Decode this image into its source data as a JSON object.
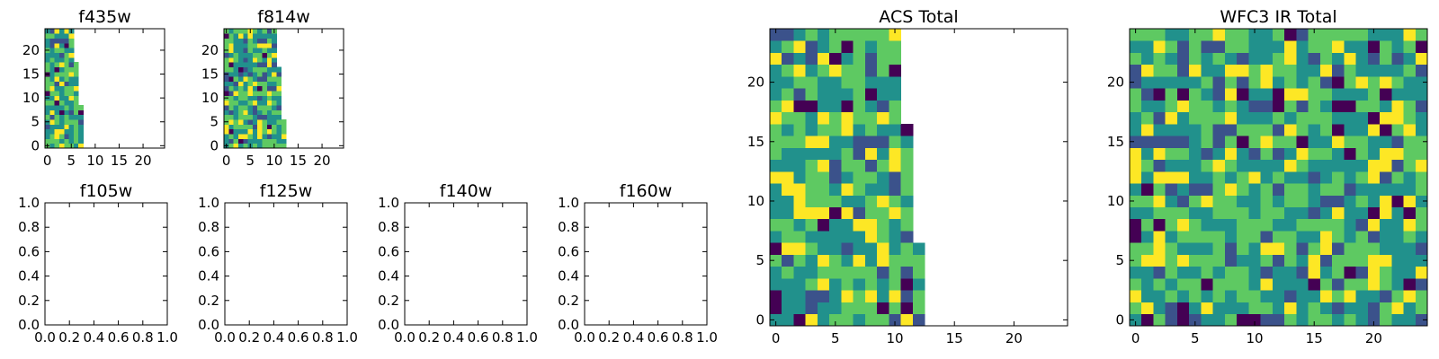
{
  "colors": {
    "colormap": [
      "#440154",
      "#3b528b",
      "#21918c",
      "#5ec962",
      "#fde725"
    ]
  },
  "chart_data": [
    {
      "type": "heatmap",
      "title": "f435w",
      "xlim": [
        -0.5,
        24.5
      ],
      "ylim": [
        -0.5,
        24.5
      ],
      "xticks": [
        "0",
        "5",
        "10",
        "15",
        "20"
      ],
      "yticks": [
        "0",
        "5",
        "10",
        "15",
        "20"
      ],
      "data_columns_by_row": [
        8,
        8,
        8,
        8,
        8,
        8,
        8,
        8,
        8,
        7,
        7,
        7,
        7,
        7,
        7,
        7,
        7,
        7,
        6,
        6,
        6,
        6,
        6,
        6,
        6
      ]
    },
    {
      "type": "heatmap",
      "title": "f814w",
      "xlim": [
        -0.5,
        24.5
      ],
      "ylim": [
        -0.5,
        24.5
      ],
      "xticks": [
        "0",
        "5",
        "10",
        "15",
        "20"
      ],
      "yticks": [
        "0",
        "5",
        "10",
        "15",
        "20"
      ],
      "data_columns_by_row": [
        13,
        13,
        13,
        13,
        13,
        13,
        12,
        12,
        12,
        12,
        12,
        12,
        12,
        12,
        12,
        12,
        12,
        11,
        11,
        11,
        11,
        11,
        11,
        11,
        11
      ]
    },
    {
      "type": "heatmap",
      "title": "f105w",
      "empty": true,
      "xlim": [
        0,
        1
      ],
      "ylim": [
        0,
        1
      ],
      "xticks": [
        "0.0",
        "0.2",
        "0.4",
        "0.6",
        "0.8",
        "1.0"
      ],
      "yticks": [
        "0.0",
        "0.2",
        "0.4",
        "0.6",
        "0.8",
        "1.0"
      ]
    },
    {
      "type": "heatmap",
      "title": "f125w",
      "empty": true,
      "xlim": [
        0,
        1
      ],
      "ylim": [
        0,
        1
      ],
      "xticks": [
        "0.0",
        "0.2",
        "0.4",
        "0.6",
        "0.8",
        "1.0"
      ],
      "yticks": [
        "0.0",
        "0.2",
        "0.4",
        "0.6",
        "0.8",
        "1.0"
      ]
    },
    {
      "type": "heatmap",
      "title": "f140w",
      "empty": true,
      "xlim": [
        0,
        1
      ],
      "ylim": [
        0,
        1
      ],
      "xticks": [
        "0.0",
        "0.2",
        "0.4",
        "0.6",
        "0.8",
        "1.0"
      ],
      "yticks": [
        "0.0",
        "0.2",
        "0.4",
        "0.6",
        "0.8",
        "1.0"
      ]
    },
    {
      "type": "heatmap",
      "title": "f160w",
      "empty": true,
      "xlim": [
        0,
        1
      ],
      "ylim": [
        0,
        1
      ],
      "xticks": [
        "0.0",
        "0.2",
        "0.4",
        "0.6",
        "0.8",
        "1.0"
      ],
      "yticks": [
        "0.0",
        "0.2",
        "0.4",
        "0.6",
        "0.8",
        "1.0"
      ]
    },
    {
      "type": "heatmap",
      "title": "ACS Total",
      "xlim": [
        -0.5,
        24.5
      ],
      "ylim": [
        -0.5,
        24.5
      ],
      "xticks": [
        "0",
        "5",
        "10",
        "15",
        "20"
      ],
      "yticks": [
        "0",
        "5",
        "10",
        "15",
        "20"
      ],
      "data_columns_by_row": [
        13,
        13,
        13,
        13,
        13,
        13,
        13,
        12,
        12,
        12,
        12,
        12,
        12,
        12,
        12,
        12,
        12,
        11,
        11,
        11,
        11,
        11,
        11,
        11,
        11
      ]
    },
    {
      "type": "heatmap",
      "title": "WFC3 IR Total",
      "xlim": [
        -0.5,
        24.5
      ],
      "ylim": [
        -0.5,
        24.5
      ],
      "xticks": [
        "0",
        "5",
        "10",
        "15",
        "20"
      ],
      "yticks": [
        "0",
        "5",
        "10",
        "15",
        "20"
      ],
      "data_columns_by_row": [
        25,
        25,
        25,
        25,
        25,
        25,
        25,
        25,
        25,
        25,
        25,
        25,
        25,
        25,
        25,
        25,
        25,
        25,
        25,
        25,
        25,
        25,
        25,
        25,
        25
      ]
    }
  ]
}
